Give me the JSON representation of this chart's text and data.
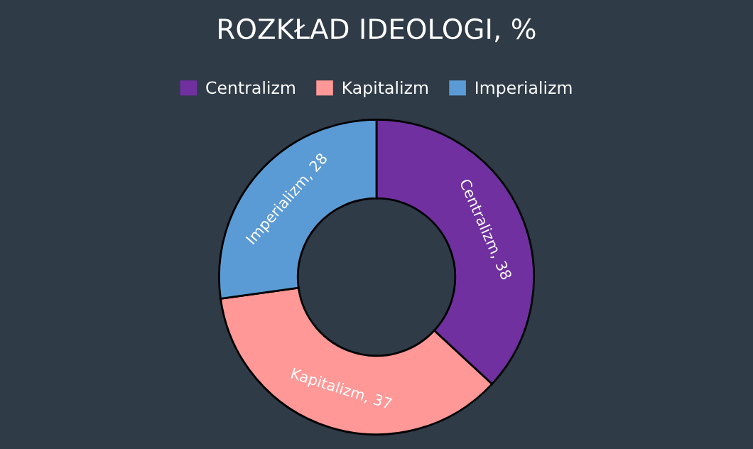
{
  "chart_data": {
    "type": "donut",
    "title": "ROZKŁAD IDEOLOGI, %",
    "categories": [
      "Centralizm",
      "Kapitalizm",
      "Imperializm"
    ],
    "values": [
      38,
      37,
      28
    ],
    "colors": [
      "#7030a0",
      "#ff9896",
      "#5b9bd5"
    ],
    "value_labels": [
      "Centralizm, 38",
      "Kapitalizm, 37",
      "Imperializm, 28"
    ],
    "legend": "top"
  }
}
